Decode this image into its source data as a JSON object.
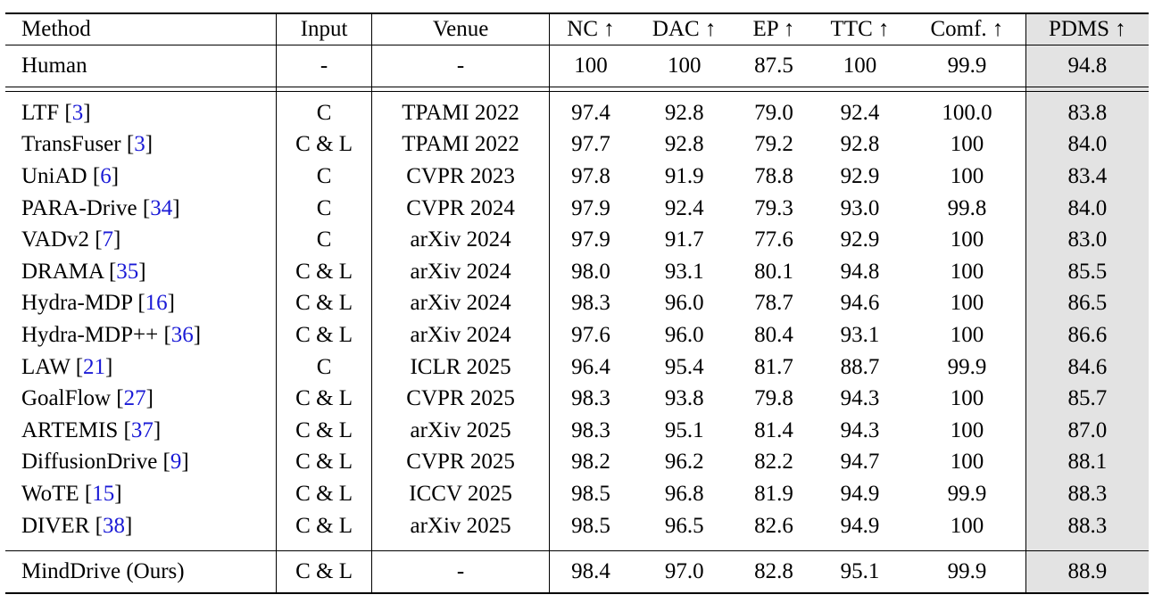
{
  "header": {
    "method": "Method",
    "input": "Input",
    "venue": "Venue",
    "nc": "NC ↑",
    "dac": "DAC ↑",
    "ep": "EP ↑",
    "ttc": "TTC ↑",
    "comf": "Comf. ↑",
    "pdms": "PDMS ↑"
  },
  "human": {
    "method": "Human",
    "input": "-",
    "venue": "-",
    "nc": "100",
    "dac": "100",
    "ep": "87.5",
    "ttc": "100",
    "comf": "99.9",
    "pdms": "94.8"
  },
  "rows": [
    {
      "name": "LTF",
      "ref": "3",
      "input": "C",
      "venue": "TPAMI 2022",
      "nc": "97.4",
      "dac": "92.8",
      "ep": "79.0",
      "ttc": "92.4",
      "comf": "100.0",
      "pdms": "83.8"
    },
    {
      "name": "TransFuser",
      "ref": "3",
      "input": "C & L",
      "venue": "TPAMI 2022",
      "nc": "97.7",
      "dac": "92.8",
      "ep": "79.2",
      "ttc": "92.8",
      "comf": "100",
      "pdms": "84.0"
    },
    {
      "name": "UniAD",
      "ref": "6",
      "input": "C",
      "venue": "CVPR 2023",
      "nc": "97.8",
      "dac": "91.9",
      "ep": "78.8",
      "ttc": "92.9",
      "comf": "100",
      "pdms": "83.4"
    },
    {
      "name": "PARA-Drive",
      "ref": "34",
      "input": "C",
      "venue": "CVPR 2024",
      "nc": "97.9",
      "dac": "92.4",
      "ep": "79.3",
      "ttc": "93.0",
      "comf": "99.8",
      "pdms": "84.0"
    },
    {
      "name": "VADv2",
      "ref": "7",
      "input": "C",
      "venue": "arXiv 2024",
      "nc": "97.9",
      "dac": "91.7",
      "ep": "77.6",
      "ttc": "92.9",
      "comf": "100",
      "pdms": "83.0"
    },
    {
      "name": "DRAMA",
      "ref": "35",
      "input": "C & L",
      "venue": "arXiv 2024",
      "nc": "98.0",
      "dac": "93.1",
      "ep": "80.1",
      "ttc": "94.8",
      "comf": "100",
      "pdms": "85.5"
    },
    {
      "name": "Hydra-MDP",
      "ref": "16",
      "input": "C & L",
      "venue": "arXiv 2024",
      "nc": "98.3",
      "dac": "96.0",
      "ep": "78.7",
      "ttc": "94.6",
      "comf": "100",
      "pdms": "86.5"
    },
    {
      "name": "Hydra-MDP++",
      "ref": "36",
      "input": "C & L",
      "venue": "arXiv 2024",
      "nc": "97.6",
      "dac": "96.0",
      "ep": "80.4",
      "ttc": "93.1",
      "comf": "100",
      "pdms": "86.6"
    },
    {
      "name": "LAW",
      "ref": "21",
      "input": "C",
      "venue": "ICLR 2025",
      "nc": "96.4",
      "dac": "95.4",
      "ep": "81.7",
      "ttc": "88.7",
      "comf": "99.9",
      "pdms": "84.6"
    },
    {
      "name": "GoalFlow",
      "ref": "27",
      "input": "C & L",
      "venue": "CVPR 2025",
      "nc": "98.3",
      "dac": "93.8",
      "ep": "79.8",
      "ttc": "94.3",
      "comf": "100",
      "pdms": "85.7"
    },
    {
      "name": "ARTEMIS",
      "ref": "37",
      "input": "C & L",
      "venue": "arXiv 2025",
      "nc": "98.3",
      "dac": "95.1",
      "ep": "81.4",
      "ttc": "94.3",
      "comf": "100",
      "pdms": "87.0"
    },
    {
      "name": "DiffusionDrive",
      "ref": "9",
      "input": "C & L",
      "venue": "CVPR 2025",
      "nc": "98.2",
      "dac": "96.2",
      "ep": "82.2",
      "ttc": "94.7",
      "comf": "100",
      "pdms": "88.1"
    },
    {
      "name": "WoTE",
      "ref": "15",
      "input": "C & L",
      "venue": "ICCV 2025",
      "nc": "98.5",
      "dac": "96.8",
      "ep": "81.9",
      "ttc": "94.9",
      "comf": "99.9",
      "pdms": "88.3"
    },
    {
      "name": "DIVER",
      "ref": "38",
      "input": "C & L",
      "venue": "arXiv 2025",
      "nc": "98.5",
      "dac": "96.5",
      "ep": "82.6",
      "ttc": "94.9",
      "comf": "100",
      "pdms": "88.3"
    }
  ],
  "ours": {
    "method": "MindDrive (Ours)",
    "input": "C & L",
    "venue": "-",
    "nc": "98.4",
    "dac": "97.0",
    "ep": "82.8",
    "ttc": "95.1",
    "comf": "99.9",
    "pdms": "88.9"
  },
  "bold": {
    "nc": [
      "98.5"
    ],
    "comf": [
      "100"
    ],
    "ours": [
      "dac",
      "ep",
      "ttc",
      "pdms",
      "method"
    ]
  }
}
